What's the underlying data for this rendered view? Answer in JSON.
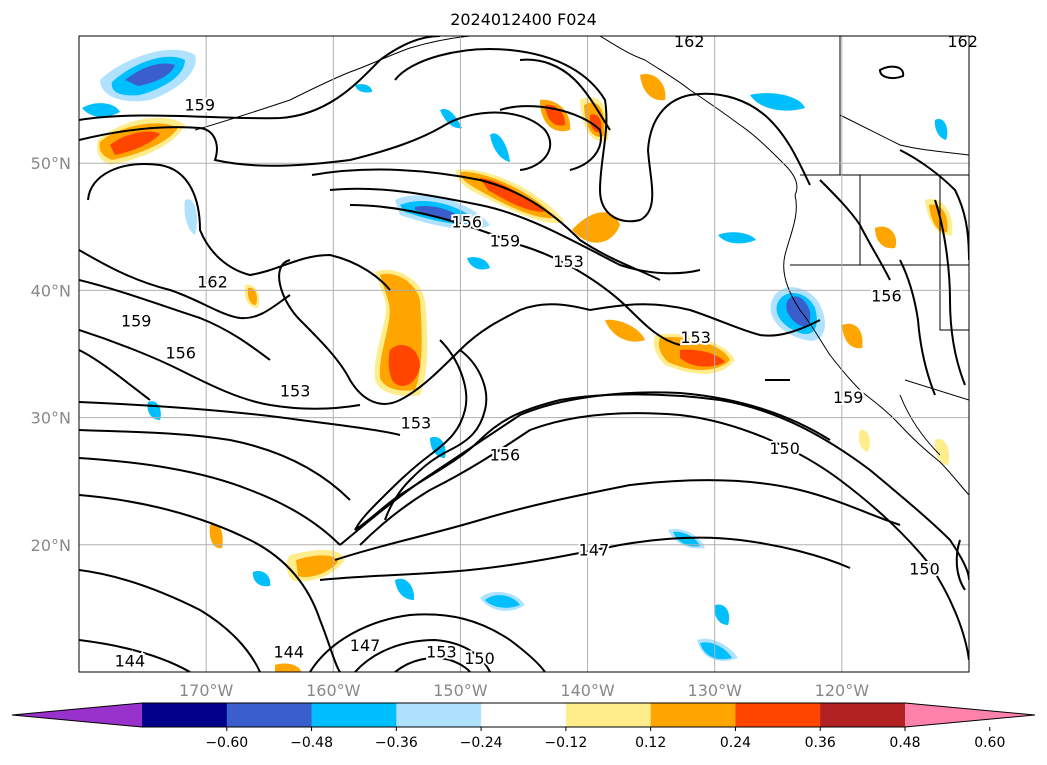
{
  "title": "2024012400 F024",
  "map": {
    "lat_labels": [
      {
        "text": "50°N",
        "lat": 50
      },
      {
        "text": "40°N",
        "lat": 40
      },
      {
        "text": "30°N",
        "lat": 30
      },
      {
        "text": "20°N",
        "lat": 20
      }
    ],
    "lon_labels": [
      {
        "text": "170°W",
        "lon": -170
      },
      {
        "text": "160°W",
        "lon": -160
      },
      {
        "text": "150°W",
        "lon": -150
      },
      {
        "text": "140°W",
        "lon": -140
      },
      {
        "text": "130°W",
        "lon": -130
      },
      {
        "text": "120°W",
        "lon": -120
      }
    ],
    "grid_lons": [
      -170,
      -160,
      -150,
      -140,
      -130,
      -120,
      -110
    ],
    "grid_lats": [
      20,
      30,
      40,
      50
    ],
    "contour_labels": [
      {
        "text": "162",
        "lon": -132,
        "lat": 59.5
      },
      {
        "text": "162",
        "lon": -110.5,
        "lat": 59.5
      },
      {
        "text": "159",
        "lon": -170.5,
        "lat": 54.5
      },
      {
        "text": "156",
        "lon": -149.5,
        "lat": 45.3
      },
      {
        "text": "159",
        "lon": -146.5,
        "lat": 43.8
      },
      {
        "text": "153",
        "lon": -141.5,
        "lat": 42.2
      },
      {
        "text": "162",
        "lon": -169.5,
        "lat": 40.6
      },
      {
        "text": "156",
        "lon": -116.5,
        "lat": 39.5
      },
      {
        "text": "159",
        "lon": -175.5,
        "lat": 37.5
      },
      {
        "text": "156",
        "lon": -172,
        "lat": 35
      },
      {
        "text": "153",
        "lon": -131.5,
        "lat": 36.2
      },
      {
        "text": "153",
        "lon": -163,
        "lat": 32
      },
      {
        "text": "159",
        "lon": -119.5,
        "lat": 31.5
      },
      {
        "text": "153",
        "lon": -153.5,
        "lat": 29.5
      },
      {
        "text": "156",
        "lon": -146.5,
        "lat": 27
      },
      {
        "text": "150",
        "lon": -124.5,
        "lat": 27.5
      },
      {
        "text": "147",
        "lon": -139.5,
        "lat": 19.5
      },
      {
        "text": "150",
        "lon": -113.5,
        "lat": 18
      },
      {
        "text": "144",
        "lon": -163.5,
        "lat": 11.5
      },
      {
        "text": "147",
        "lon": -157.5,
        "lat": 12
      },
      {
        "text": "153",
        "lon": -151.5,
        "lat": 11.5
      },
      {
        "text": "150",
        "lon": -148.5,
        "lat": 11
      },
      {
        "text": "144",
        "lon": -176,
        "lat": 10.8
      }
    ]
  },
  "colorbar": {
    "ticks": [
      "−0.60",
      "−0.48",
      "−0.36",
      "−0.24",
      "−0.12",
      "0.12",
      "0.24",
      "0.36",
      "0.48",
      "0.60"
    ],
    "colors": [
      "#9932cc",
      "#00008b",
      "#3a5fcd",
      "#00bfff",
      "#b0e2ff",
      "#ffffff",
      "#ffec8b",
      "#ffa500",
      "#ff4500",
      "#b22222",
      "#ff82ab"
    ]
  }
}
